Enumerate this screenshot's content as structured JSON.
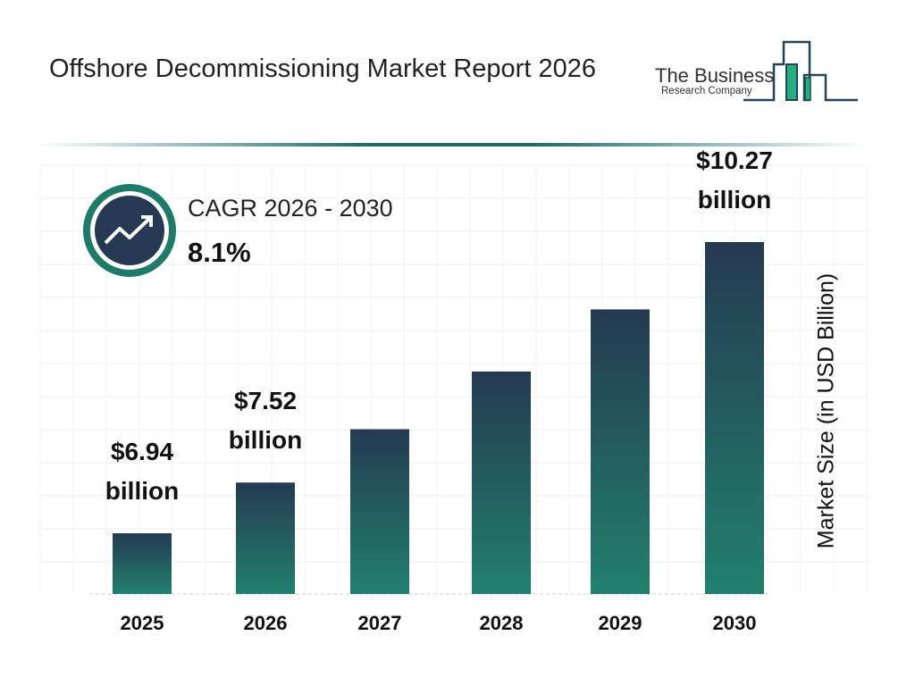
{
  "header": {
    "title": "Offshore Decommissioning Market Report 2026",
    "logo_line1": "The Business",
    "logo_line2": "Research Company"
  },
  "cagr": {
    "label": "CAGR 2026 - 2030",
    "value": "8.1%",
    "icon": "trending-up-icon"
  },
  "colors": {
    "bar_top": "#253a52",
    "bar_bottom": "#21806d",
    "accent": "#1f6d62"
  },
  "chart_data": {
    "type": "bar",
    "title": "",
    "xlabel": "",
    "ylabel": "Market Size (in USD Billion)",
    "categories": [
      "2025",
      "2026",
      "2027",
      "2028",
      "2029",
      "2030"
    ],
    "values": [
      6.94,
      7.52,
      8.13,
      8.79,
      9.5,
      10.27
    ],
    "data_labels": [
      [
        "$6.94",
        "billion"
      ],
      [
        "$7.52",
        "billion"
      ],
      null,
      null,
      null,
      [
        "$10.27",
        "billion"
      ]
    ],
    "grid": true
  }
}
